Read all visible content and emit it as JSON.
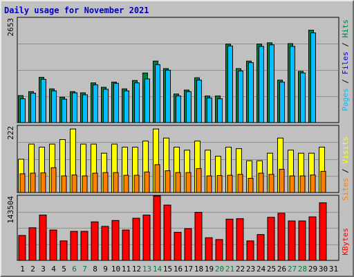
{
  "title": "Daily usage for November 2021",
  "colors": {
    "hits": "#008040",
    "files": "#00c0ff",
    "pages": "#00c0ff",
    "visits": "#ffff00",
    "sites": "#ff8000",
    "kbytes": "#ff0000",
    "label_blue": "#0000ff",
    "weekend": "#008040"
  },
  "chart_data": [
    {
      "type": "bar",
      "title": "Daily usage for November 2021",
      "categories": [
        "1",
        "2",
        "3",
        "4",
        "5",
        "6",
        "7",
        "8",
        "9",
        "10",
        "11",
        "12",
        "13",
        "14",
        "15",
        "16",
        "17",
        "18",
        "19",
        "20",
        "21",
        "22",
        "23",
        "24",
        "25",
        "26",
        "27",
        "28",
        "29",
        "30",
        "31"
      ],
      "weekend_days": [
        "6",
        "7",
        "13",
        "14",
        "20",
        "21",
        "27",
        "28"
      ],
      "ylim": [
        0,
        2653
      ],
      "ytick_label": "2653",
      "legend": [
        "Pages",
        "Files",
        "Hits"
      ],
      "series": [
        {
          "name": "Hits",
          "values": [
            680,
            780,
            1140,
            850,
            640,
            780,
            750,
            1000,
            890,
            1020,
            850,
            1060,
            1250,
            1550,
            1360,
            720,
            820,
            1130,
            670,
            670,
            1980,
            1360,
            1550,
            1980,
            2010,
            1070,
            1990,
            1290,
            2330,
            0,
            0
          ]
        },
        {
          "name": "Files",
          "values": [
            600,
            740,
            1090,
            800,
            590,
            750,
            700,
            950,
            840,
            990,
            800,
            1000,
            1100,
            1460,
            1320,
            670,
            780,
            1070,
            620,
            600,
            1930,
            1300,
            1510,
            1920,
            1960,
            1020,
            1920,
            1250,
            2260,
            0,
            0
          ]
        }
      ]
    },
    {
      "type": "bar",
      "ylim": [
        0,
        222
      ],
      "ytick_label": "222",
      "legend": [
        "Sites",
        "Visits"
      ],
      "series": [
        {
          "name": "Visits",
          "values": [
            110,
            160,
            150,
            160,
            175,
            210,
            160,
            160,
            130,
            160,
            150,
            150,
            170,
            210,
            180,
            150,
            140,
            170,
            140,
            120,
            150,
            145,
            105,
            105,
            130,
            180,
            140,
            130,
            130,
            150,
            0
          ]
        },
        {
          "name": "Sites",
          "values": [
            62,
            64,
            65,
            82,
            55,
            58,
            55,
            64,
            66,
            66,
            57,
            57,
            68,
            92,
            72,
            66,
            66,
            79,
            55,
            56,
            57,
            60,
            47,
            64,
            60,
            77,
            55,
            55,
            58,
            70,
            0
          ]
        }
      ]
    },
    {
      "type": "bar",
      "ylim": [
        0,
        143504
      ],
      "ytick_label": "143504",
      "legend": [
        "KBytes"
      ],
      "series": [
        {
          "name": "KBytes",
          "values": [
            55000,
            72000,
            100000,
            67000,
            43000,
            64000,
            64000,
            85000,
            75000,
            88000,
            67000,
            93000,
            100000,
            142000,
            122000,
            62000,
            70000,
            106000,
            50000,
            46000,
            91000,
            92000,
            43000,
            57000,
            95000,
            104000,
            87000,
            87000,
            96000,
            127000,
            0
          ]
        }
      ]
    }
  ]
}
